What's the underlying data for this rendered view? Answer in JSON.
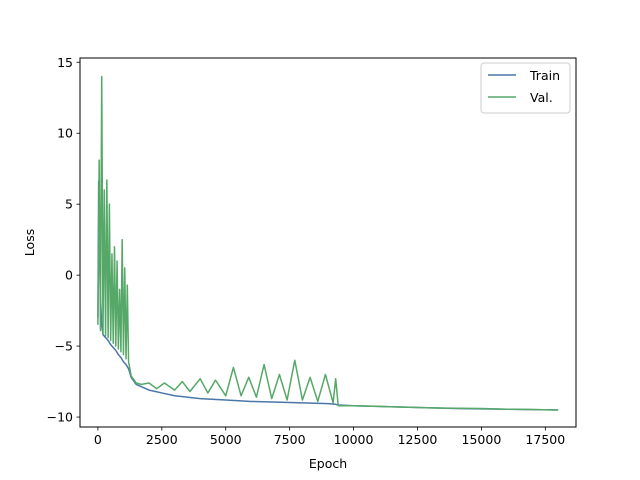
{
  "chart_data": {
    "type": "line",
    "title": "",
    "xlabel": "Epoch",
    "ylabel": "Loss",
    "xlim": [
      -700,
      18700
    ],
    "ylim": [
      -10.7,
      15.3
    ],
    "xticks": [
      0,
      2500,
      5000,
      7500,
      10000,
      12500,
      15000,
      17500
    ],
    "yticks": [
      -10,
      -5,
      0,
      5,
      10,
      15
    ],
    "grid": false,
    "legend": {
      "placement": "top-right"
    },
    "series": [
      {
        "name": "Train",
        "color": "#4a76a8",
        "x": [
          0,
          30,
          60,
          100,
          150,
          200,
          300,
          400,
          500,
          600,
          700,
          800,
          900,
          1000,
          1100,
          1200,
          1300,
          1500,
          2000,
          2500,
          3000,
          4000,
          5000,
          6000,
          7000,
          8000,
          9000,
          9300,
          9400,
          10000,
          12000,
          14000,
          16000,
          18000
        ],
        "y": [
          -3.0,
          6.6,
          1.5,
          -1.5,
          -3.5,
          -4.2,
          -4.4,
          -4.6,
          -4.9,
          -5.1,
          -5.3,
          -5.6,
          -5.8,
          -6.1,
          -6.3,
          -6.6,
          -7.2,
          -7.7,
          -8.1,
          -8.3,
          -8.5,
          -8.7,
          -8.8,
          -8.9,
          -8.95,
          -9.0,
          -9.05,
          -9.1,
          -9.15,
          -9.2,
          -9.3,
          -9.4,
          -9.45,
          -9.5
        ]
      },
      {
        "name": "Val.",
        "color": "#55a868",
        "x": [
          0,
          50,
          100,
          150,
          200,
          250,
          300,
          350,
          400,
          450,
          500,
          550,
          600,
          650,
          700,
          750,
          800,
          850,
          900,
          950,
          1000,
          1050,
          1100,
          1150,
          1200,
          1250,
          1300,
          1500,
          1700,
          2000,
          2300,
          2600,
          3000,
          3300,
          3600,
          4000,
          4300,
          4600,
          5000,
          5300,
          5600,
          5900,
          6200,
          6500,
          6800,
          7100,
          7400,
          7700,
          8000,
          8300,
          8600,
          8900,
          9200,
          9300,
          9400,
          10000,
          11000,
          12000,
          13000,
          14000,
          15000,
          16000,
          17000,
          18000
        ],
        "y": [
          -3.5,
          8.1,
          -3.9,
          14.0,
          -4.1,
          6.0,
          -4.3,
          6.7,
          -4.4,
          5.0,
          -4.6,
          1.5,
          -4.8,
          2.0,
          -5.0,
          1.0,
          -5.2,
          -1.0,
          -5.4,
          2.5,
          -5.6,
          0.5,
          -5.9,
          -0.7,
          -6.1,
          -6.6,
          -7.1,
          -7.6,
          -7.7,
          -7.6,
          -8.0,
          -7.6,
          -8.1,
          -7.5,
          -8.2,
          -7.3,
          -8.3,
          -7.4,
          -8.5,
          -6.5,
          -8.5,
          -7.2,
          -8.6,
          -6.3,
          -8.7,
          -7.0,
          -8.8,
          -6.0,
          -8.8,
          -7.2,
          -8.9,
          -7.0,
          -9.0,
          -7.3,
          -9.2,
          -9.2,
          -9.25,
          -9.3,
          -9.35,
          -9.38,
          -9.4,
          -9.45,
          -9.47,
          -9.5
        ]
      }
    ]
  }
}
